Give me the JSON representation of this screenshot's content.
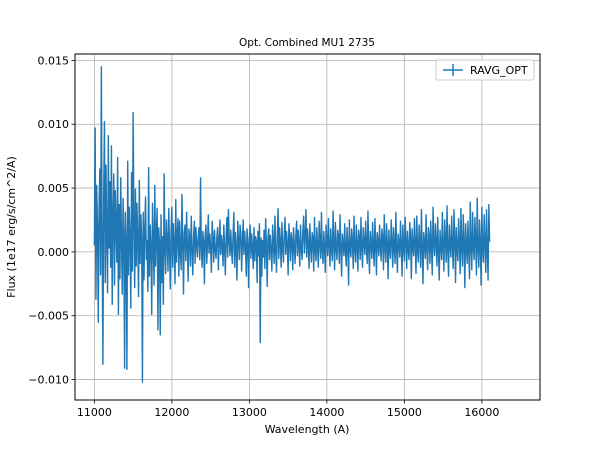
{
  "chart_data": {
    "type": "line",
    "title": "Opt. Combined MU1 2735",
    "xlabel": "Wavelength (A)",
    "ylabel": "Flux (1e17 erg/s/cm^2/A)",
    "xlim": [
      10750,
      16750
    ],
    "ylim": [
      -0.0116,
      0.0155
    ],
    "xticks": [
      11000,
      12000,
      13000,
      14000,
      15000,
      16000
    ],
    "yticks": [
      -0.01,
      -0.005,
      0.0,
      0.005,
      0.01,
      0.015
    ],
    "xtick_labels": [
      "11000",
      "12000",
      "13000",
      "14000",
      "15000",
      "16000"
    ],
    "ytick_labels": [
      "−0.010",
      "−0.005",
      "0.000",
      "0.005",
      "0.010",
      "0.015"
    ],
    "grid": true,
    "legend": {
      "position": "top-right",
      "entries": [
        "RAVG_OPT"
      ]
    },
    "series": [
      {
        "name": "RAVG_OPT",
        "color": "#1f77b4",
        "x_start": 11000,
        "x_step": 10,
        "values": [
          0.0005,
          0.0097,
          -0.0037,
          0.0052,
          0.0021,
          -0.0055,
          0.0033,
          0.0065,
          -0.0018,
          0.0145,
          0.0008,
          -0.0088,
          0.0041,
          0.0102,
          -0.0024,
          0.0068,
          0.0012,
          -0.0032,
          0.0091,
          0.0003,
          0.0055,
          -0.0012,
          0.0083,
          -0.0041,
          0.0027,
          0.0061,
          -0.0026,
          0.0048,
          0.0019,
          -0.0008,
          0.0074,
          -0.0049,
          0.0037,
          -0.0021,
          0.0058,
          0.0009,
          -0.0033,
          0.0042,
          0.0014,
          -0.0091,
          0.0031,
          0.0005,
          -0.0092,
          0.0071,
          -0.0018,
          0.0035,
          0.0011,
          -0.0044,
          0.0062,
          -0.0015,
          0.0109,
          0.0022,
          -0.0028,
          0.0049,
          -0.0011,
          0.0038,
          0.0007,
          -0.0035,
          0.0056,
          -0.0009,
          0.0029,
          0.0011,
          -0.0102,
          0.0031,
          -0.0022,
          0.0018,
          0.0043,
          -0.0006,
          0.0009,
          -0.0031,
          0.0066,
          -0.0019,
          0.0021,
          0.0004,
          -0.0049,
          0.0038,
          0.0008,
          -0.0026,
          0.0052,
          -0.0011,
          0.0016,
          0.0034,
          -0.0061,
          0.0019,
          0.0007,
          -0.0065,
          0.0029,
          -0.0024,
          0.0012,
          -0.0041,
          0.0061,
          0.0003,
          -0.0017,
          0.0025,
          0.0009,
          -0.0015,
          0.0034,
          0.0002,
          -0.0029,
          0.0017,
          0.0035,
          -0.0012,
          0.0022,
          0.0006,
          -0.0025,
          0.0041,
          -0.0008,
          0.0013,
          0.0026,
          -0.0019,
          0.0024,
          0.0001,
          -0.0014,
          0.0045,
          0.0008,
          -0.0033,
          0.0015,
          0.0021,
          -0.0007,
          0.0031,
          0.0004,
          -0.0023,
          0.0018,
          0.0012,
          -0.0011,
          0.0028,
          0.0002,
          -0.0018,
          0.0011,
          0.0024,
          -0.0009,
          0.0019,
          0.0006,
          -0.0004,
          0.0012,
          0.0019,
          -0.0006,
          0.0058,
          0.0003,
          -0.0012,
          0.0016,
          0.0008,
          -0.0025,
          0.0013,
          0.0021,
          -0.0009,
          0.0007,
          0.0029,
          -0.0001,
          0.0014,
          0.0003,
          -0.0016,
          0.0024,
          0.0011,
          -0.0008,
          0.0017,
          0.0001,
          -0.0005,
          0.0011,
          0.0019,
          -0.0014,
          0.0009,
          0.0025,
          -0.0002,
          0.0013,
          0.0006,
          -0.0011,
          0.0021,
          0.0004,
          -0.0018,
          0.0012,
          0.0027,
          -0.0004,
          0.0033,
          0.0009,
          -0.0003,
          0.0017,
          0.0002,
          -0.0009,
          0.0014,
          0.0031,
          -0.0012,
          0.0015,
          0.0003,
          -0.0022,
          0.0024,
          0.0008,
          -0.0006,
          0.0021,
          0.0015,
          -0.0015,
          0.0008,
          0.0025,
          -0.0002,
          0.0016,
          0.0004,
          -0.0019,
          0.0018,
          0.0007,
          -0.0028,
          0.0011,
          0.0021,
          -0.0005,
          0.0014,
          0.0003,
          -0.0013,
          0.0019,
          -0.0007,
          0.0012,
          0.0009,
          -0.0024,
          0.0016,
          -0.0003,
          0.0022,
          -0.0071,
          0.0011,
          -0.0019,
          0.0009,
          -0.0004,
          0.0017,
          -0.0013,
          0.0026,
          0.0005,
          -0.0027,
          0.0011,
          0.0018,
          -0.0006,
          0.0013,
          0.0002,
          -0.0015,
          0.0021,
          0.0007,
          -0.0009,
          0.0028,
          0.0001,
          -0.0016,
          0.0012,
          0.0034,
          -0.0005,
          0.0019,
          0.0008,
          -0.0012,
          0.0023,
          0.0003,
          -0.0008,
          0.0014,
          0.0027,
          -0.0002,
          0.0016,
          0.0006,
          -0.0018,
          0.0022,
          0.0011,
          -0.0007,
          0.0015,
          0.0009,
          -0.0014,
          0.0019,
          0.0004,
          -0.0009,
          0.0013,
          0.0024,
          -0.0003,
          0.0017,
          0.0006,
          -0.0011,
          0.0021,
          0.0002,
          -0.0006,
          0.0016,
          0.0028,
          -0.0001,
          0.0012,
          0.0033,
          -0.0004,
          0.0018,
          0.0007,
          -0.0013,
          0.0022,
          0.0005,
          -0.0008,
          0.0015,
          0.0011,
          -0.0015,
          0.0027,
          0.0001,
          -0.0007,
          0.0019,
          0.0003,
          -0.0012,
          0.0024,
          0.0008,
          -0.0005,
          0.0031,
          0.0001,
          -0.0009,
          0.0016,
          0.0004,
          -0.0016,
          0.0021,
          0.0009,
          -0.0003,
          0.0026,
          0.0005,
          -0.0011,
          0.0018,
          0.0002,
          -0.0007,
          0.0032,
          0.0006,
          -0.0014,
          0.0023,
          0.0003,
          -0.0006,
          0.0017,
          0.0012,
          -0.0009,
          0.0029,
          0.0004,
          -0.0019,
          0.0014,
          0.0007,
          -0.0003,
          0.0022,
          0.0001,
          -0.0011,
          0.0019,
          0.0006,
          -0.0026,
          0.0025,
          0.0003,
          -0.0004,
          0.0018,
          0.0009,
          -0.0013,
          0.0028,
          0.0002,
          -0.0008,
          0.0021,
          0.0005,
          -0.0015,
          0.0017,
          0.0011,
          -0.0006,
          0.0027,
          0.0003,
          -0.0012,
          0.0019,
          0.0008,
          -0.0002,
          0.0024,
          0.0004,
          -0.0009,
          0.0032,
          0.0001,
          -0.0017,
          0.0016,
          0.0007,
          -0.0005,
          0.0023,
          0.0002,
          -0.0011,
          0.0026,
          0.0006,
          -0.0018,
          0.0015,
          0.0009,
          -0.0003,
          0.0021,
          0.0004,
          -0.0007,
          0.0018,
          0.0012,
          -0.0014,
          0.0029,
          0.0003,
          -0.0008,
          0.0022,
          0.0006,
          -0.0021,
          0.0017,
          0.0001,
          -0.0005,
          0.0025,
          0.0008,
          -0.0012,
          0.0019,
          0.0004,
          -0.0009,
          0.0031,
          0.0002,
          -0.0016,
          0.0014,
          0.0007,
          -0.0004,
          0.0024,
          0.0005,
          -0.0019,
          0.0021,
          0.0003,
          -0.0007,
          0.0027,
          0.0009,
          -0.0013,
          0.0016,
          0.0002,
          -0.0006,
          0.0023,
          0.0011,
          -0.0021,
          0.0018,
          0.0004,
          -0.0003,
          0.0026,
          0.0006,
          -0.0017,
          0.0028,
          0.0001,
          -0.0008,
          0.0021,
          0.0009,
          -0.0012,
          0.0033,
          0.0003,
          -0.0025,
          0.0015,
          0.0007,
          -0.0005,
          0.0029,
          0.0002,
          -0.0014,
          0.0019,
          0.0012,
          -0.0009,
          0.0024,
          0.0004,
          -0.0018,
          0.0035,
          0.0006,
          -0.0003,
          0.0022,
          0.0008,
          -0.0011,
          0.0027,
          0.0001,
          -0.0022,
          0.0017,
          0.0005,
          -0.0006,
          0.0031,
          0.0003,
          -0.0015,
          0.0025,
          0.0009,
          -0.0008,
          0.0036,
          0.0002,
          -0.0019,
          0.0021,
          0.0006,
          -0.0004,
          0.0028,
          0.0004,
          -0.0013,
          0.0033,
          0.0011,
          -0.0024,
          0.0019,
          0.0001,
          -0.0007,
          0.0026,
          0.0007,
          -0.0017,
          0.0034,
          0.0003,
          -0.0011,
          0.0029,
          0.0008,
          -0.0028,
          0.0022,
          0.0005,
          -0.0009,
          0.0024,
          0.0002,
          -0.0021,
          0.0039,
          0.0006,
          -0.0014,
          0.0031,
          0.0003,
          -0.0006,
          0.0027,
          0.0009,
          -0.0018,
          0.0042,
          0.0004,
          -0.0012,
          0.0025,
          0.0007,
          -0.0026,
          0.0035,
          0.0002,
          -0.0008,
          0.0029,
          0.0005,
          -0.0016,
          0.0033,
          0.0001,
          -0.0022,
          0.0037,
          0.0008
        ]
      }
    ]
  }
}
